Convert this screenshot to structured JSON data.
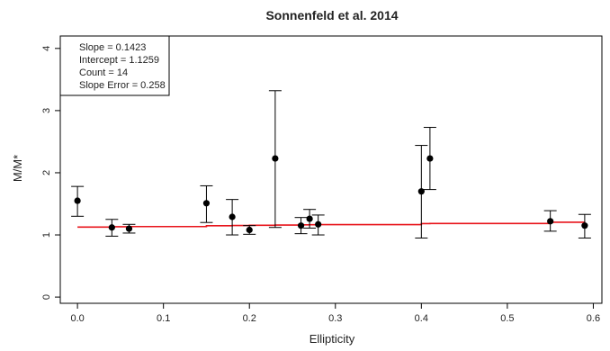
{
  "chart_data": {
    "type": "scatter",
    "title": "Sonnenfeld et al. 2014",
    "xlabel": "Ellipticity",
    "ylabel": "M/M*",
    "xlim": [
      -0.02,
      0.61
    ],
    "ylim": [
      -0.1,
      4.2
    ],
    "x_ticks": [
      0.0,
      0.1,
      0.2,
      0.3,
      0.4,
      0.5,
      0.6
    ],
    "x_tick_labels": [
      "0.0",
      "0.1",
      "0.2",
      "0.3",
      "0.4",
      "0.5",
      "0.6"
    ],
    "y_ticks": [
      0,
      1,
      2,
      3,
      4
    ],
    "y_tick_labels": [
      "0",
      "1",
      "2",
      "3",
      "4"
    ],
    "grid": false,
    "legend_lines": [
      "Slope = 0.1423",
      "Intercept = 1.1259",
      "Count = 14",
      "Slope Error = 0.258"
    ],
    "legend_position": "top-left",
    "points": [
      {
        "x": 0.0,
        "y": 1.55,
        "y_low": 1.3,
        "y_high": 1.78
      },
      {
        "x": 0.04,
        "y": 1.12,
        "y_low": 0.98,
        "y_high": 1.25
      },
      {
        "x": 0.06,
        "y": 1.1,
        "y_low": 1.03,
        "y_high": 1.17
      },
      {
        "x": 0.15,
        "y": 1.51,
        "y_low": 1.2,
        "y_high": 1.79
      },
      {
        "x": 0.18,
        "y": 1.29,
        "y_low": 1.0,
        "y_high": 1.57
      },
      {
        "x": 0.2,
        "y": 1.08,
        "y_low": 1.01,
        "y_high": 1.15
      },
      {
        "x": 0.23,
        "y": 2.23,
        "y_low": 1.12,
        "y_high": 3.32
      },
      {
        "x": 0.26,
        "y": 1.15,
        "y_low": 1.02,
        "y_high": 1.28
      },
      {
        "x": 0.27,
        "y": 1.26,
        "y_low": 1.11,
        "y_high": 1.41
      },
      {
        "x": 0.28,
        "y": 1.17,
        "y_low": 1.0,
        "y_high": 1.32
      },
      {
        "x": 0.4,
        "y": 1.7,
        "y_low": 0.95,
        "y_high": 2.44
      },
      {
        "x": 0.41,
        "y": 2.23,
        "y_low": 1.73,
        "y_high": 2.73
      },
      {
        "x": 0.55,
        "y": 1.22,
        "y_low": 1.06,
        "y_high": 1.39
      },
      {
        "x": 0.59,
        "y": 1.15,
        "y_low": 0.95,
        "y_high": 1.33
      }
    ],
    "fit_line": {
      "slope": 0.1423,
      "intercept": 1.1259,
      "x_start": 0.0,
      "x_end": 0.59
    },
    "colors": {
      "points": "#000000",
      "error_bars": "#000000",
      "fit_line": "#e8141b",
      "axis": "#000000"
    }
  }
}
